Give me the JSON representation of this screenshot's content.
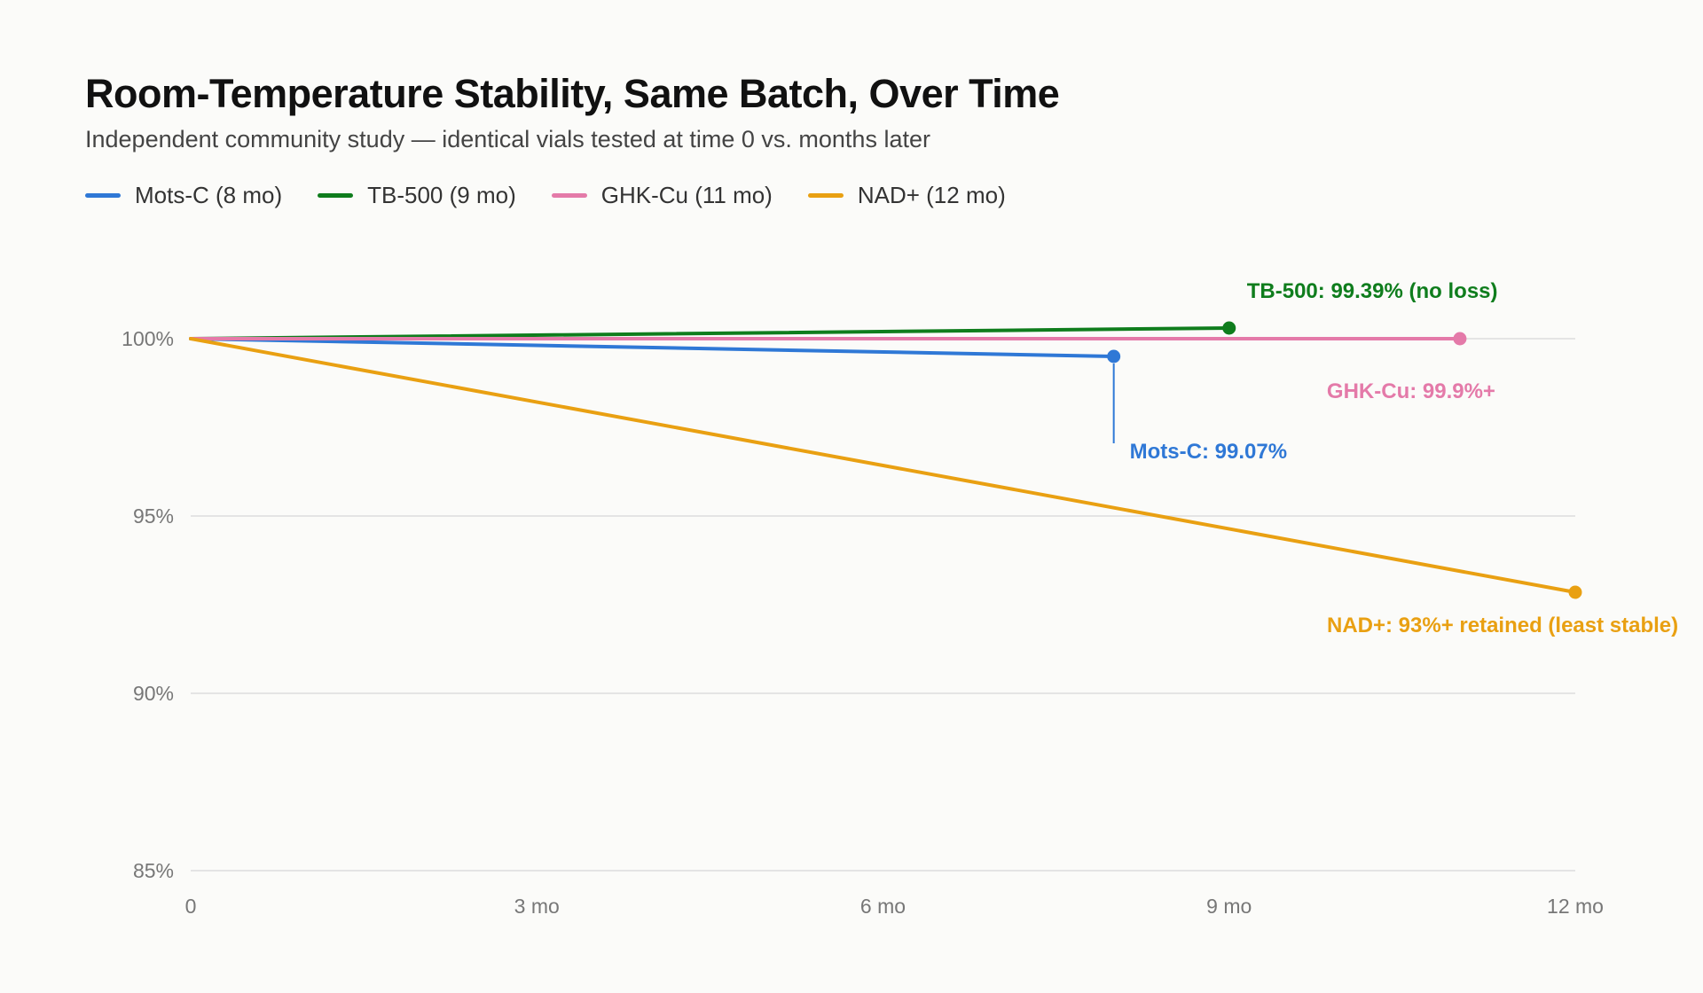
{
  "chart_data": {
    "type": "line",
    "title": "Room-Temperature Stability, Same Batch, Over Time",
    "subtitle": "Independent community study — identical vials tested at time 0 vs. months later",
    "xlabel": "",
    "ylabel": "",
    "xlim": [
      0,
      12
    ],
    "ylim": [
      85,
      101.5
    ],
    "x_ticks": [
      {
        "value": 0,
        "label": "0"
      },
      {
        "value": 3,
        "label": "3 mo"
      },
      {
        "value": 6,
        "label": "6 mo"
      },
      {
        "value": 9,
        "label": "9 mo"
      },
      {
        "value": 12,
        "label": "12 mo"
      }
    ],
    "y_ticks": [
      {
        "value": 85,
        "label": "85%"
      },
      {
        "value": 90,
        "label": "90%"
      },
      {
        "value": 95,
        "label": "95%"
      },
      {
        "value": 100,
        "label": "100%"
      }
    ],
    "grid": true,
    "legend_position": "top-left",
    "series": [
      {
        "name": "Mots-C (8 mo)",
        "color": "#2f78d6",
        "x": [
          0,
          8
        ],
        "y": [
          100,
          99.5
        ],
        "annotation": "Mots-C: 99.07%"
      },
      {
        "name": "TB-500 (9 mo)",
        "color": "#0f7d1d",
        "x": [
          0,
          9
        ],
        "y": [
          100,
          100.3
        ],
        "annotation": "TB-500: 99.39% (no loss)"
      },
      {
        "name": "GHK-Cu (11 mo)",
        "color": "#e47aa9",
        "x": [
          0,
          11
        ],
        "y": [
          100,
          100.0
        ],
        "annotation": "GHK-Cu: 99.9%+"
      },
      {
        "name": "NAD+ (12 mo)",
        "color": "#e9a012",
        "x": [
          0,
          12
        ],
        "y": [
          100,
          92.85
        ],
        "annotation": "NAD+: 93%+ retained (least stable)"
      }
    ]
  }
}
